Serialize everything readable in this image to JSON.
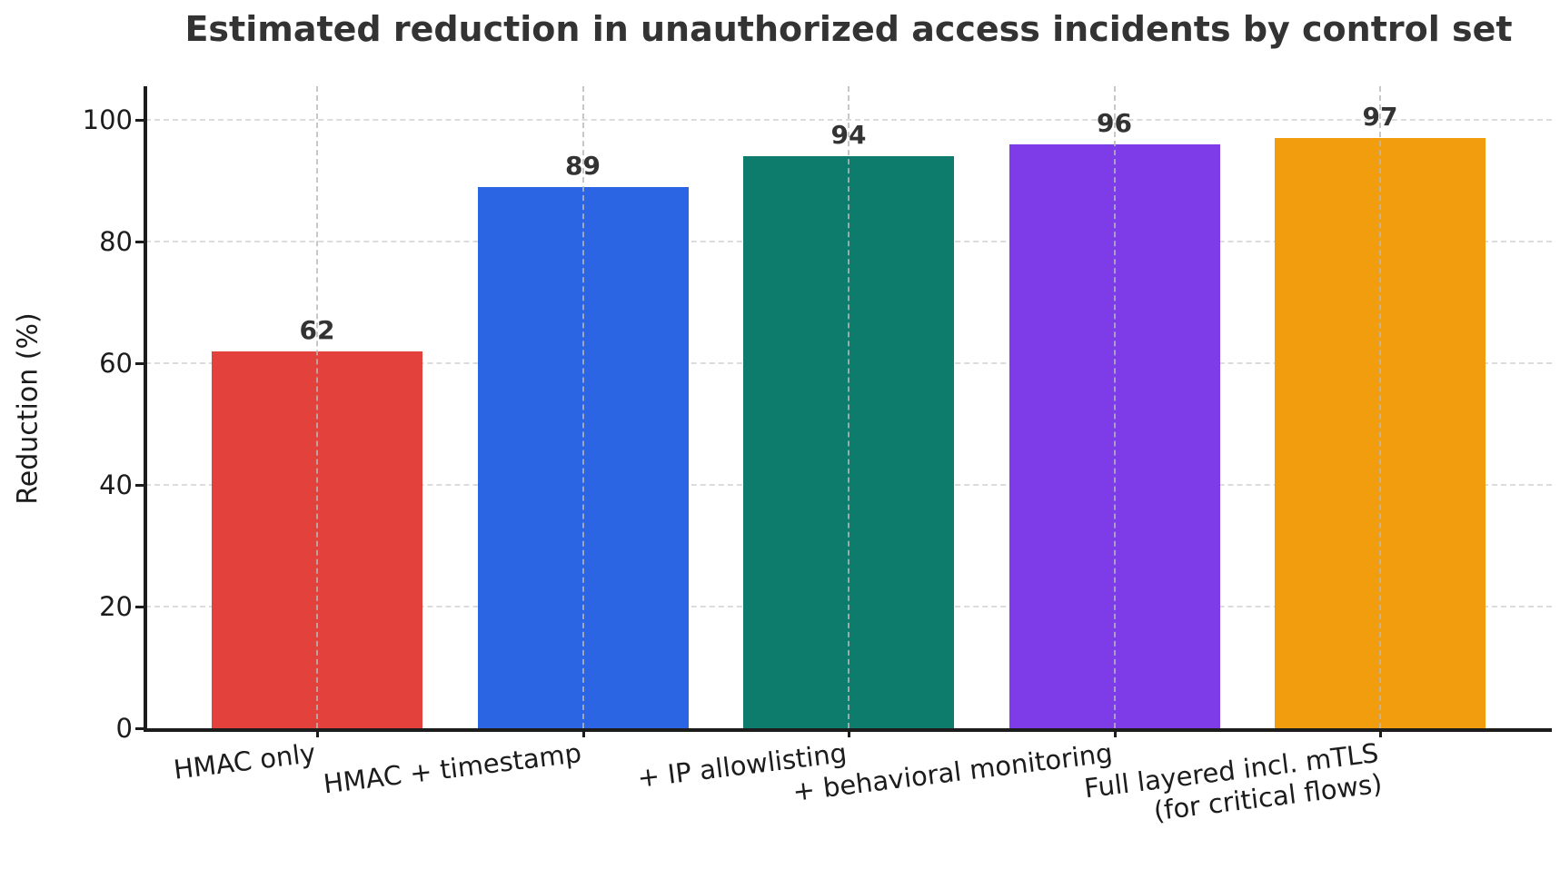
{
  "chart_data": {
    "type": "bar",
    "title": "Estimated reduction in unauthorized access incidents by control set",
    "xlabel": "",
    "ylabel": "Reduction (%)",
    "categories": [
      "HMAC only",
      "HMAC + timestamp",
      "+ IP allowlisting",
      "+ behavioral monitoring",
      "Full layered incl. mTLS\n(for critical flows)"
    ],
    "values": [
      62,
      89,
      94,
      96,
      97
    ],
    "value_labels": [
      "62",
      "89",
      "94",
      "96",
      "97"
    ],
    "bar_colors": [
      "#e2413c",
      "#2b65e4",
      "#0e7c6d",
      "#7e3be8",
      "#f19d0e"
    ],
    "yticks": [
      0,
      20,
      40,
      60,
      80,
      100
    ],
    "ylim": [
      0,
      105
    ],
    "grid": {
      "horizontal": true,
      "vertical": true,
      "style": "dashed",
      "color": "#dcdcdc"
    },
    "legend_position": "none",
    "colors": {
      "title_text": "#333333",
      "tick_text": "#1c1c1c",
      "axis_spine": "#1c1c1c",
      "background": "#ffffff"
    }
  }
}
